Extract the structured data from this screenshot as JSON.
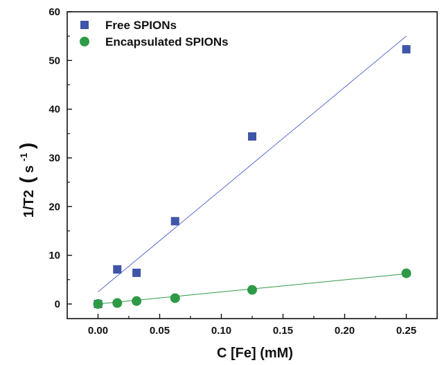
{
  "chart_data": {
    "type": "scatter",
    "title": "",
    "xlabel": "C [Fe] (mM)",
    "ylabel_main": "1/T2",
    "ylabel_unit_base": "s",
    "ylabel_unit_exp": "-1",
    "xlim": [
      -0.025,
      0.275
    ],
    "ylim": [
      -3,
      60
    ],
    "x_ticks": [
      0.0,
      0.05,
      0.1,
      0.15,
      0.2,
      0.25
    ],
    "x_tick_labels": [
      "0.00",
      "0.05",
      "0.10",
      "0.15",
      "0.20",
      "0.25"
    ],
    "y_ticks": [
      0,
      10,
      20,
      30,
      40,
      50,
      60
    ],
    "y_tick_labels": [
      "0",
      "10",
      "20",
      "30",
      "40",
      "50",
      "60"
    ],
    "grid": false,
    "legend_position": "top-left",
    "series": [
      {
        "name": "Free SPIONs",
        "marker": "square",
        "color": "#3f55a8",
        "x": [
          0.0,
          0.0156,
          0.03125,
          0.0625,
          0.125,
          0.25
        ],
        "y": [
          0.0,
          7.1,
          6.4,
          17.0,
          34.4,
          52.3
        ],
        "fit": {
          "x": [
            0.0,
            0.25
          ],
          "y": [
            2.5,
            55.0
          ],
          "color": "#5a6ad0"
        }
      },
      {
        "name": "Encapsulated SPIONs",
        "marker": "circle",
        "color": "#2e9a46",
        "x": [
          0.0,
          0.0156,
          0.03125,
          0.0625,
          0.125,
          0.25
        ],
        "y": [
          0.0,
          0.2,
          0.6,
          1.2,
          2.9,
          6.3
        ],
        "fit": {
          "x": [
            0.0,
            0.25
          ],
          "y": [
            0.0,
            6.2
          ],
          "color": "#2e9a46"
        }
      }
    ]
  }
}
